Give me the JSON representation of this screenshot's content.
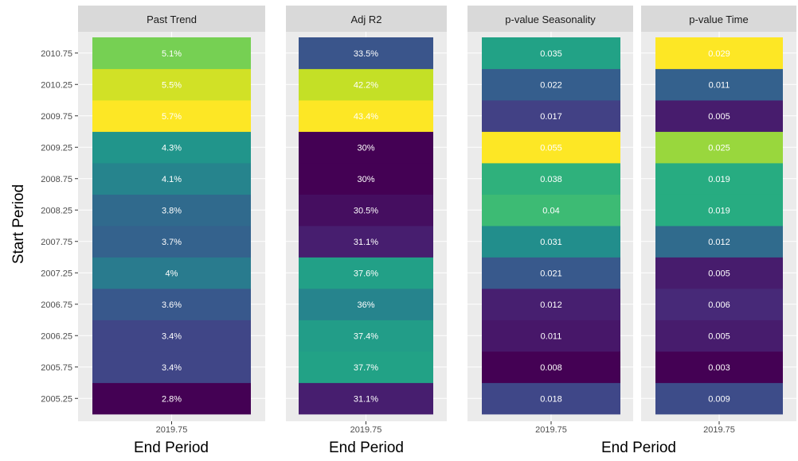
{
  "chart_data": {
    "type": "heatmap",
    "xlabel": "End Period",
    "ylabel": "Start Period",
    "x_tick": "2019.75",
    "y_ticks": [
      "2005.25",
      "2005.75",
      "2006.25",
      "2006.75",
      "2007.25",
      "2007.75",
      "2008.25",
      "2008.75",
      "2009.25",
      "2009.75",
      "2010.25",
      "2010.75"
    ],
    "panels": [
      {
        "title": "Past Trend",
        "values": [
          2.8,
          3.4,
          3.4,
          3.6,
          4.0,
          3.7,
          3.8,
          4.1,
          4.3,
          5.7,
          5.5,
          5.1
        ],
        "labels": [
          "2.8%",
          "3.4%",
          "3.4%",
          "3.6%",
          "4%",
          "3.7%",
          "3.8%",
          "4.1%",
          "4.3%",
          "5.7%",
          "5.5%",
          "5.1%"
        ]
      },
      {
        "title": "Adj R2",
        "values": [
          31.1,
          37.7,
          37.4,
          36.0,
          37.6,
          31.1,
          30.5,
          30.0,
          30.0,
          43.4,
          42.2,
          33.5
        ],
        "labels": [
          "31.1%",
          "37.7%",
          "37.4%",
          "36%",
          "37.6%",
          "31.1%",
          "30.5%",
          "30%",
          "30%",
          "43.4%",
          "42.2%",
          "33.5%"
        ]
      },
      {
        "title": "p-value Seasonality",
        "values": [
          0.018,
          0.008,
          0.011,
          0.012,
          0.021,
          0.031,
          0.04,
          0.038,
          0.055,
          0.017,
          0.022,
          0.035
        ],
        "labels": [
          "0.018",
          "0.008",
          "0.011",
          "0.012",
          "0.021",
          "0.031",
          "0.04",
          "0.038",
          "0.055",
          "0.017",
          "0.022",
          "0.035"
        ]
      },
      {
        "title": "p-value Time",
        "values": [
          0.009,
          0.003,
          0.005,
          0.006,
          0.005,
          0.012,
          0.019,
          0.019,
          0.025,
          0.005,
          0.011,
          0.029
        ],
        "labels": [
          "0.009",
          "0.003",
          "0.005",
          "0.006",
          "0.005",
          "0.012",
          "0.019",
          "0.019",
          "0.025",
          "0.005",
          "0.011",
          "0.029"
        ]
      }
    ],
    "colormap": "viridis",
    "panel_background": "#ebebeb",
    "strip_background": "#d9d9d9",
    "grid": true,
    "legend": "none"
  }
}
